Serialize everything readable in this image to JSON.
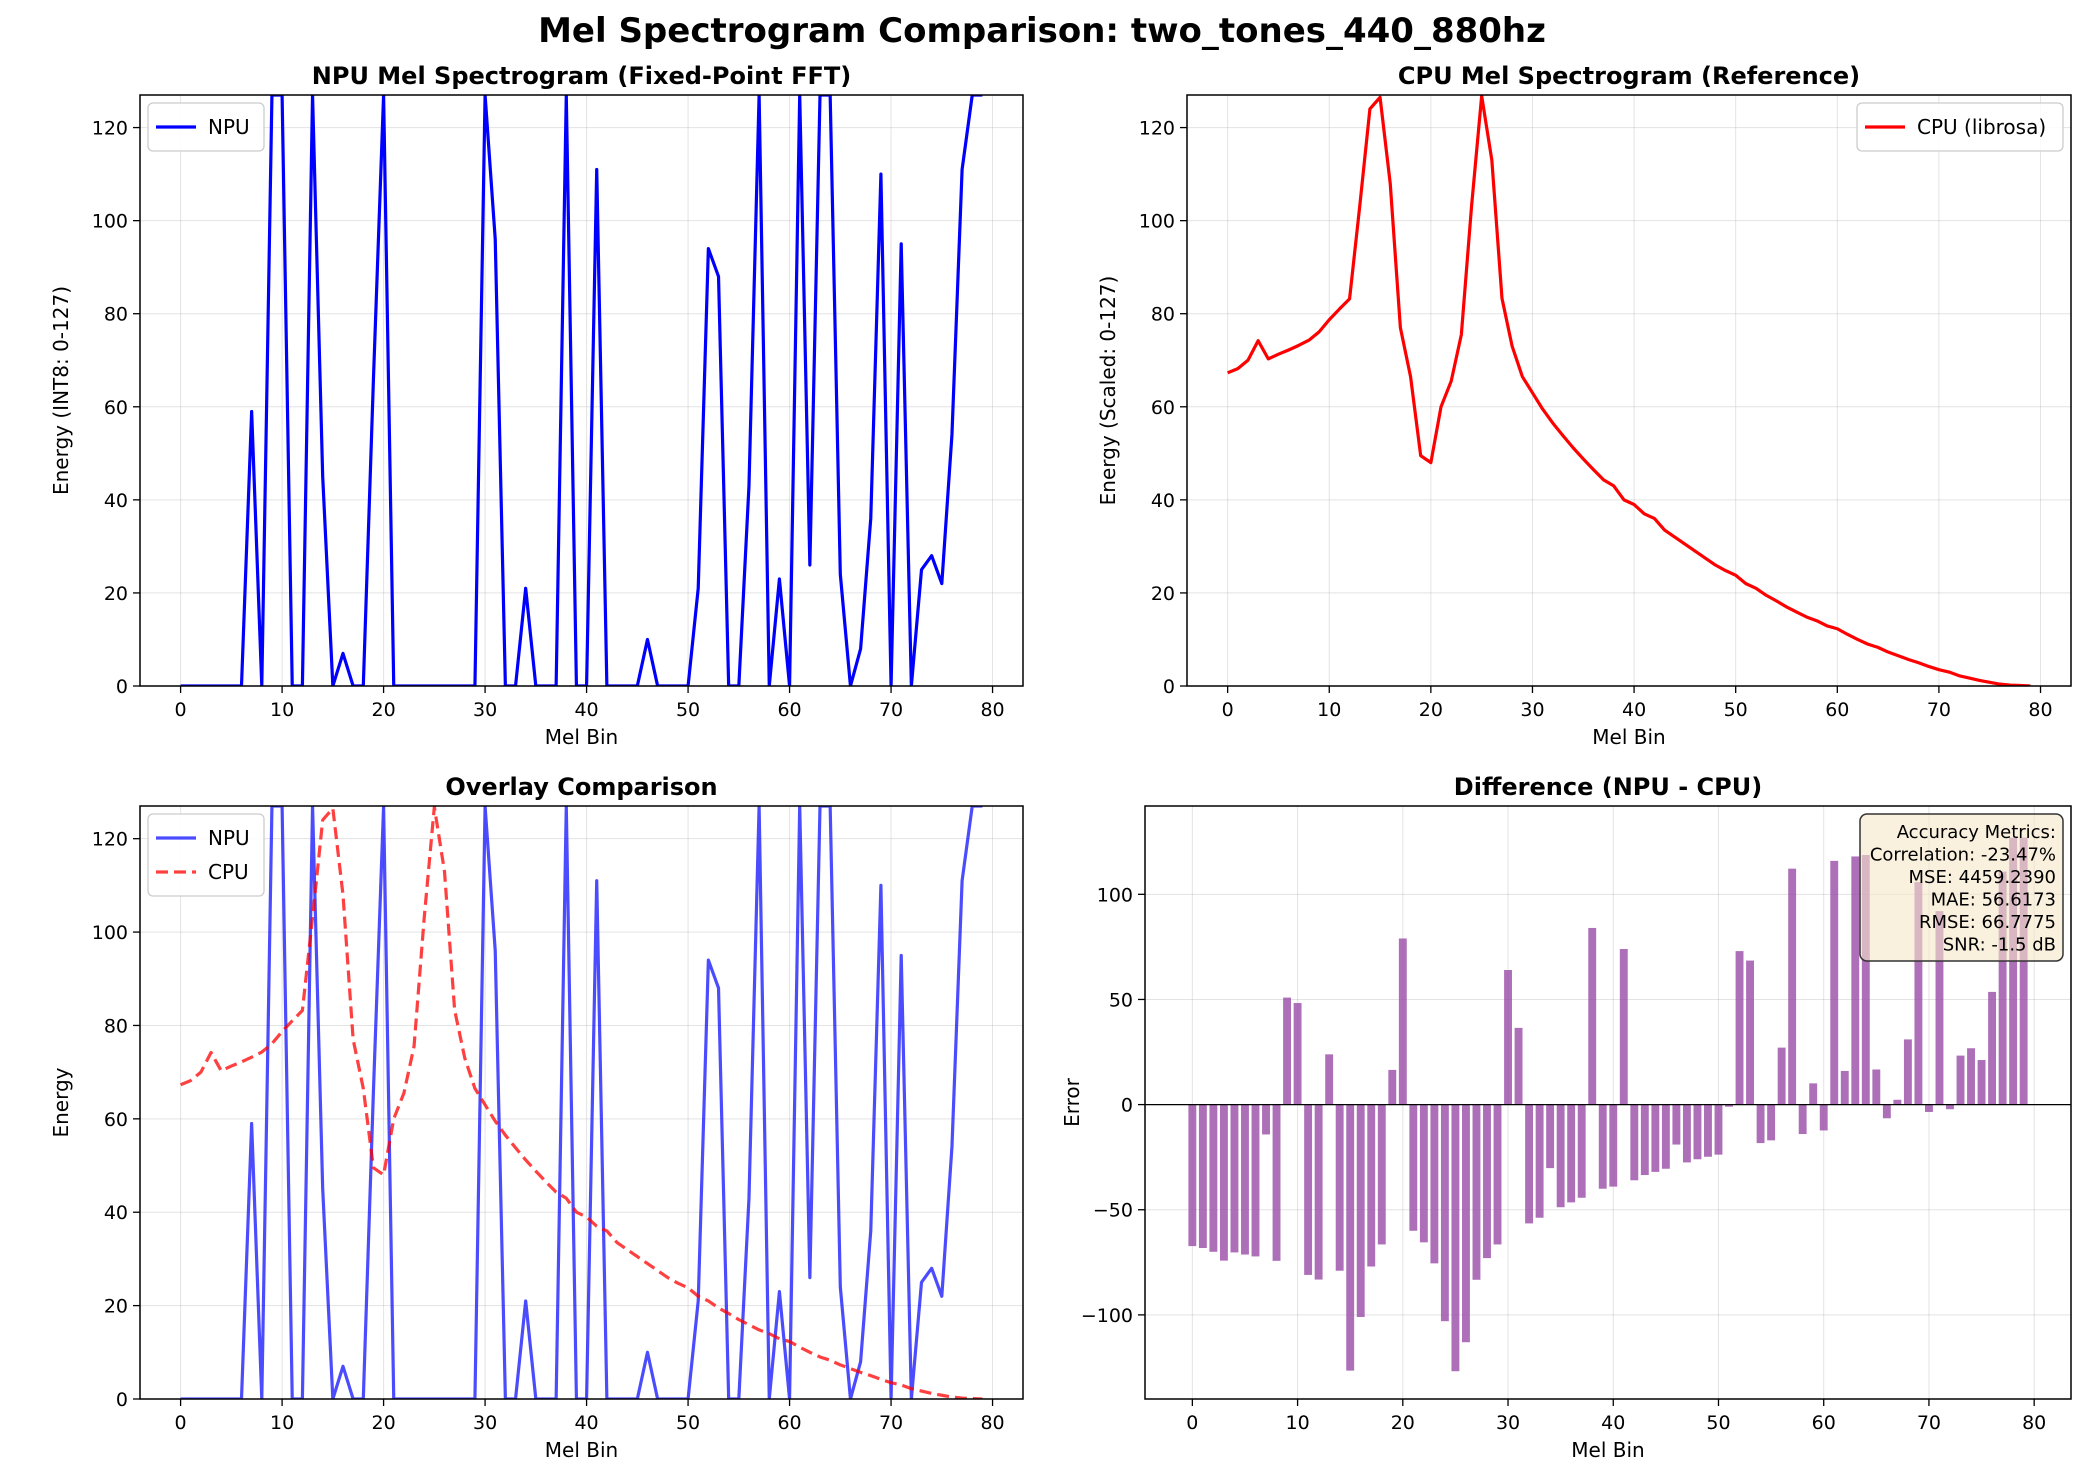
{
  "figure": {
    "title": "Mel Spectrogram Comparison: two_tones_440_880hz"
  },
  "colors": {
    "npu": "#0000ff",
    "cpu": "#ff0000",
    "diff": "#9b4fa8",
    "metrics_box": "#f5e6c8"
  },
  "chart_data": [
    {
      "id": "npu",
      "type": "line",
      "title": "NPU Mel Spectrogram (Fixed-Point FFT)",
      "xlabel": "Mel Bin",
      "ylabel": "Energy (INT8: 0-127)",
      "xlim": [
        -4,
        83
      ],
      "ylim": [
        0,
        127
      ],
      "xticks": [
        0,
        10,
        20,
        30,
        40,
        50,
        60,
        70,
        80
      ],
      "yticks": [
        0,
        20,
        40,
        60,
        80,
        100,
        120
      ],
      "grid": true,
      "legend_position": "upper-left",
      "series": [
        {
          "name": "NPU",
          "color": "#0000ff",
          "style": "solid",
          "opacity": 1,
          "x": [
            0,
            1,
            2,
            3,
            4,
            5,
            6,
            7,
            8,
            9,
            10,
            11,
            12,
            13,
            14,
            15,
            16,
            17,
            18,
            19,
            20,
            21,
            22,
            23,
            24,
            25,
            26,
            27,
            28,
            29,
            30,
            31,
            32,
            33,
            34,
            35,
            36,
            37,
            38,
            39,
            40,
            41,
            42,
            43,
            44,
            45,
            46,
            47,
            48,
            49,
            50,
            51,
            52,
            53,
            54,
            55,
            56,
            57,
            58,
            59,
            60,
            61,
            62,
            63,
            64,
            65,
            66,
            67,
            68,
            69,
            70,
            71,
            72,
            73,
            74,
            75,
            76,
            77,
            78,
            79
          ],
          "y": [
            0,
            0,
            0,
            0,
            0,
            0,
            0,
            59,
            0,
            127,
            127,
            0,
            0,
            127,
            45,
            0,
            7,
            0,
            0,
            66,
            127,
            0,
            0,
            0,
            0,
            0,
            0,
            0,
            0,
            0,
            127,
            96,
            0,
            0,
            21,
            0,
            0,
            0,
            127,
            0,
            0,
            111,
            0,
            0,
            0,
            0,
            10,
            0,
            0,
            0,
            0,
            21,
            94,
            88,
            0,
            0,
            43,
            127,
            0,
            23,
            0,
            127,
            26,
            127,
            127,
            24,
            0,
            8,
            36,
            110,
            0,
            95,
            0,
            25,
            28,
            22,
            54,
            111,
            127,
            127
          ]
        }
      ]
    },
    {
      "id": "cpu",
      "type": "line",
      "title": "CPU Mel Spectrogram (Reference)",
      "xlabel": "Mel Bin",
      "ylabel": "Energy (Scaled: 0-127)",
      "xlim": [
        -4,
        83
      ],
      "ylim": [
        0,
        127
      ],
      "xticks": [
        0,
        10,
        20,
        30,
        40,
        50,
        60,
        70,
        80
      ],
      "yticks": [
        0,
        20,
        40,
        60,
        80,
        100,
        120
      ],
      "grid": true,
      "legend_position": "upper-right",
      "series": [
        {
          "name": "CPU (librosa)",
          "color": "#ff0000",
          "style": "solid",
          "opacity": 1,
          "x": [
            0,
            1,
            2,
            3,
            4,
            5,
            6,
            7,
            8,
            9,
            10,
            11,
            12,
            13,
            14,
            15,
            16,
            17,
            18,
            19,
            20,
            21,
            22,
            23,
            24,
            25,
            26,
            27,
            28,
            29,
            30,
            31,
            32,
            33,
            34,
            35,
            36,
            37,
            38,
            39,
            40,
            41,
            42,
            43,
            44,
            45,
            46,
            47,
            48,
            49,
            50,
            51,
            52,
            53,
            54,
            55,
            56,
            57,
            58,
            59,
            60,
            61,
            62,
            63,
            64,
            65,
            66,
            67,
            68,
            69,
            70,
            71,
            72,
            73,
            74,
            75,
            76,
            77,
            78,
            79
          ],
          "y": [
            67.3,
            68.2,
            70.0,
            74.2,
            70.3,
            71.3,
            72.2,
            73.2,
            74.3,
            76.1,
            78.7,
            81.0,
            83.2,
            103.1,
            124.0,
            126.5,
            108.0,
            77.0,
            66.5,
            49.5,
            48.0,
            60.0,
            65.5,
            75.5,
            103.0,
            126.8,
            113.0,
            83.3,
            73.0,
            66.5,
            63.0,
            59.5,
            56.5,
            53.8,
            51.2,
            48.8,
            46.5,
            44.3,
            43.0,
            40.0,
            39.0,
            37.0,
            36.0,
            33.5,
            32.0,
            30.5,
            29.0,
            27.5,
            26.0,
            24.8,
            23.8,
            22.0,
            21.0,
            19.5,
            18.3,
            17.0,
            15.9,
            14.8,
            14.0,
            12.9,
            12.3,
            11.1,
            10.0,
            9.0,
            8.3,
            7.3,
            6.5,
            5.7,
            5.0,
            4.2,
            3.5,
            3.0,
            2.2,
            1.7,
            1.2,
            0.8,
            0.4,
            0.2,
            0.1,
            0.0
          ]
        }
      ]
    },
    {
      "id": "overlay",
      "type": "line",
      "title": "Overlay Comparison",
      "xlabel": "Mel Bin",
      "ylabel": "Energy",
      "xlim": [
        -4,
        83
      ],
      "ylim": [
        0,
        127
      ],
      "xticks": [
        0,
        10,
        20,
        30,
        40,
        50,
        60,
        70,
        80
      ],
      "yticks": [
        0,
        20,
        40,
        60,
        80,
        100,
        120
      ],
      "grid": true,
      "legend_position": "upper-left",
      "series": [
        {
          "name": "NPU",
          "color": "#0000ff",
          "style": "solid",
          "opacity": 0.7,
          "ref": "npu"
        },
        {
          "name": "CPU",
          "color": "#ff0000",
          "style": "dashed",
          "opacity": 0.75,
          "ref": "cpu"
        }
      ]
    },
    {
      "id": "diff",
      "type": "bar",
      "title": "Difference (NPU - CPU)",
      "xlabel": "Mel Bin",
      "ylabel": "Error",
      "xlim": [
        -4.5,
        83.5
      ],
      "ylim": [
        -140,
        142
      ],
      "xticks": [
        0,
        10,
        20,
        30,
        40,
        50,
        60,
        70,
        80
      ],
      "yticks": [
        -100,
        -50,
        0,
        50,
        100
      ],
      "ytick_labels": [
        "−100",
        "−50",
        "0",
        "50",
        "100"
      ],
      "grid": true,
      "zero_line": true,
      "bar_color": "#9b4fa8",
      "computed_from": "npu - cpu",
      "metrics_box": {
        "heading": "Accuracy Metrics:",
        "lines": [
          "Correlation: -23.47%",
          "MSE: 4459.2390",
          "MAE: 56.6173",
          "RMSE: 66.7775",
          "SNR: -1.5 dB"
        ],
        "position": "top-right"
      }
    }
  ]
}
